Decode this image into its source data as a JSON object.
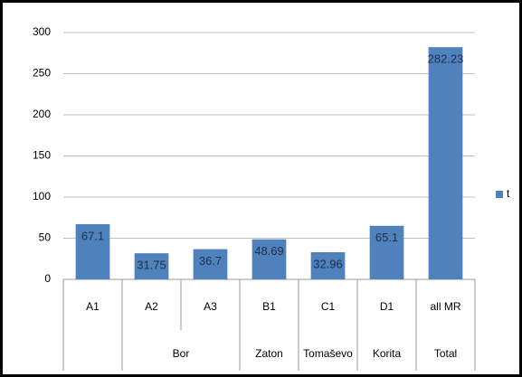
{
  "chart_data": {
    "type": "bar",
    "categories": [
      "A1",
      "A2",
      "A3",
      "B1",
      "C1",
      "D1",
      "all MR"
    ],
    "groups": [
      {
        "name": null,
        "size": 1
      },
      {
        "name": "Bor",
        "size": 2
      },
      {
        "name": "Zaton",
        "size": 1
      },
      {
        "name": "Tomaševo",
        "size": 1
      },
      {
        "name": "Korita",
        "size": 1
      },
      {
        "name": "Total",
        "size": 1
      }
    ],
    "series": [
      {
        "name": "t",
        "color": "#4f81bd",
        "values": [
          67.1,
          31.75,
          36.7,
          48.69,
          32.96,
          65.1,
          282.23
        ]
      }
    ],
    "ylim": [
      0,
      300
    ],
    "yticks": [
      0,
      50,
      100,
      150,
      200,
      250,
      300
    ],
    "grid": true,
    "legend": "right"
  }
}
